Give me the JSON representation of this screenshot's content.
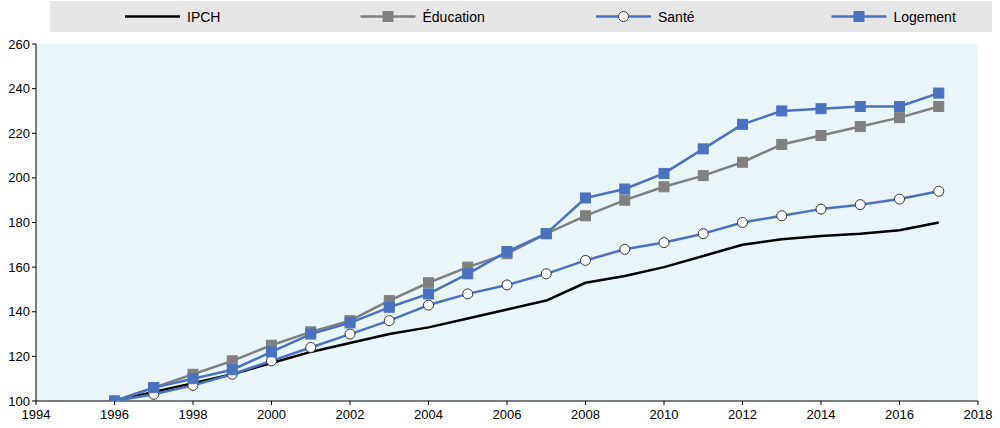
{
  "chart_data": {
    "type": "line",
    "x": [
      1996,
      1997,
      1998,
      1999,
      2000,
      2001,
      2002,
      2003,
      2004,
      2005,
      2006,
      2007,
      2008,
      2009,
      2010,
      2011,
      2012,
      2013,
      2014,
      2015,
      2016,
      2017
    ],
    "series": [
      {
        "name": "IPCH",
        "color": "#000000",
        "marker": "none",
        "line_style": "solid",
        "values": [
          100,
          104,
          108,
          112,
          117,
          122,
          126,
          130,
          133,
          137,
          141,
          145,
          153,
          156,
          160,
          165,
          170,
          172.5,
          174,
          175,
          176.5,
          180
        ]
      },
      {
        "name": "Éducation",
        "color": "#808080",
        "marker": "square",
        "line_style": "solid",
        "values": [
          100,
          106,
          112,
          118,
          125,
          131,
          136,
          145,
          153,
          160,
          166,
          175,
          183,
          190,
          196,
          201,
          207,
          215,
          219,
          223,
          227,
          232
        ]
      },
      {
        "name": "Santé",
        "color": "#4a72c0",
        "marker": "circle",
        "line_style": "solid",
        "values": [
          100,
          103,
          107,
          112,
          118,
          124,
          130,
          136,
          143,
          148,
          152,
          157,
          163,
          168,
          171,
          175,
          180,
          183,
          186,
          188,
          190.5,
          194
        ]
      },
      {
        "name": "Logement",
        "color": "#4a72c0",
        "marker": "square",
        "line_style": "solid",
        "values": [
          100,
          106,
          110,
          114,
          122,
          130,
          135,
          142,
          148,
          157,
          167,
          175,
          191,
          195,
          202,
          213,
          224,
          230,
          231,
          232,
          232,
          238
        ]
      }
    ],
    "xlim": [
      1994,
      2018
    ],
    "xticks": [
      1994,
      1996,
      1998,
      2000,
      2002,
      2004,
      2006,
      2008,
      2010,
      2012,
      2014,
      2016,
      2018
    ],
    "ylim": [
      100,
      260
    ],
    "yticks": [
      100,
      120,
      140,
      160,
      180,
      200,
      220,
      240,
      260
    ],
    "grid": false,
    "legend": "top"
  }
}
